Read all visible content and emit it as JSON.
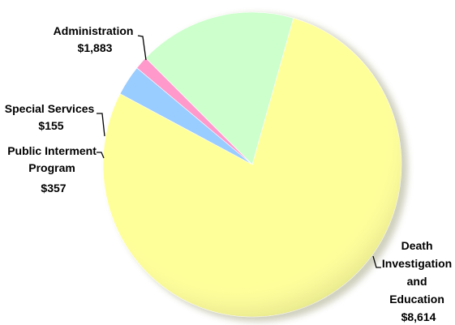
{
  "chart_data": {
    "type": "pie",
    "slices": [
      {
        "label": "Death Investigation and Education",
        "value": 8614,
        "value_text": "$8,614",
        "color": "#ffff99"
      },
      {
        "label": "Public Interment Program",
        "value": 357,
        "value_text": "$357",
        "color": "#99ccff"
      },
      {
        "label": "Special Services",
        "value": 155,
        "value_text": "$155",
        "color": "#ff99cc"
      },
      {
        "label": "Administration",
        "value": 1883,
        "value_text": "$1,883",
        "color": "#ccffcc"
      }
    ],
    "title": "",
    "legend": "none",
    "style": "3d-shaded"
  },
  "labels": {
    "death": [
      "Death",
      "Investigation",
      "and",
      "Education",
      "$8,614"
    ],
    "public": [
      "Public Interment",
      "Program",
      "$357"
    ],
    "special": [
      "Special Services",
      "$155"
    ],
    "admin": [
      "Administration",
      "$1,883"
    ]
  }
}
